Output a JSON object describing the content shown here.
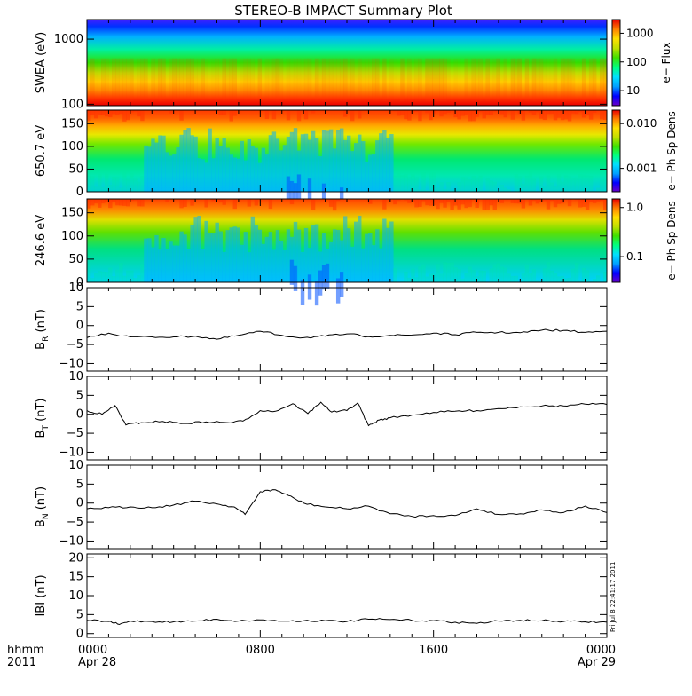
{
  "title": "STEREO-B IMPACT Summary Plot",
  "stamp": "Fri Jul 8 22:41:17 2011",
  "time_axis": {
    "row1_label": "hhmm",
    "row2_label": "2011",
    "ticks": [
      {
        "time": "0000",
        "date": "Apr 28"
      },
      {
        "time": "0800",
        "date": ""
      },
      {
        "time": "1600",
        "date": ""
      },
      {
        "time": "0000",
        "date": "Apr 29"
      }
    ]
  },
  "colors": {
    "spectrogram": [
      "#6a00c8",
      "#0000ff",
      "#00a0ff",
      "#00e0ff",
      "#00ff80",
      "#40e000",
      "#c0e000",
      "#ffe000",
      "#ff8000",
      "#e80000"
    ],
    "line": "#000000"
  },
  "chart_data": [
    {
      "type": "heatmap",
      "ylabel": "SWEA (eV)",
      "yscale": "log",
      "ylim": [
        95,
        2000
      ],
      "yticks": [
        "100",
        "1000"
      ],
      "colorbar_label": "e− Flux",
      "colorbar_scale": "log",
      "colorbar_ticks": [
        "10",
        "100",
        "1000"
      ],
      "colorbar_range": [
        3,
        3000
      ]
    },
    {
      "type": "heatmap",
      "ylabel": "650.7 eV",
      "ylim": [
        0,
        180
      ],
      "yticks": [
        "0",
        "50",
        "100",
        "150"
      ],
      "colorbar_label": "e− Ph Sp Dens",
      "colorbar_scale": "log",
      "colorbar_ticks": [
        "0.001",
        "0.010"
      ],
      "colorbar_range": [
        0.0003,
        0.02
      ]
    },
    {
      "type": "heatmap",
      "ylabel": "246.6 eV",
      "ylim": [
        0,
        180
      ],
      "yticks": [
        "0",
        "50",
        "100",
        "150"
      ],
      "colorbar_label": "e− Ph Sp Dens",
      "colorbar_scale": "log",
      "colorbar_ticks": [
        "0.1",
        "1.0"
      ],
      "colorbar_range": [
        0.03,
        1.5
      ]
    },
    {
      "type": "line",
      "ylabel": "B",
      "ylabel_sub": "R",
      "yunit": " (nT)",
      "ylim": [
        -12,
        10
      ],
      "yticks": [
        "−10",
        "−5",
        "0",
        "5",
        "10"
      ],
      "x": [
        0,
        1,
        2,
        3,
        4,
        5,
        6,
        7,
        8,
        9,
        10,
        11,
        12,
        13,
        14,
        15,
        16,
        17,
        18,
        19,
        20,
        21,
        22,
        23,
        24
      ],
      "y": [
        -3.2,
        -2.0,
        -3.0,
        -3.0,
        -3.0,
        -2.8,
        -3.6,
        -2.6,
        -1.5,
        -2.6,
        -3.2,
        -2.8,
        -2.2,
        -2.9,
        -2.6,
        -2.5,
        -2.0,
        -2.4,
        -1.8,
        -1.8,
        -1.9,
        -1.2,
        -1.3,
        -1.8,
        -1.5
      ]
    },
    {
      "type": "line",
      "ylabel": "B",
      "ylabel_sub": "T",
      "yunit": " (nT)",
      "ylim": [
        -12,
        10
      ],
      "yticks": [
        "−10",
        "−5",
        "0",
        "5",
        "10"
      ],
      "x": [
        0,
        0.7,
        1.3,
        1.8,
        2.5,
        3.5,
        4.5,
        5.5,
        6.5,
        7.2,
        8,
        8.7,
        9.5,
        10.2,
        10.8,
        11.3,
        12,
        12.5,
        13,
        13.5,
        14,
        15,
        16,
        17,
        18,
        19,
        20,
        21,
        22,
        23,
        24
      ],
      "y": [
        1.0,
        0.0,
        2.3,
        -2.8,
        -2.2,
        -1.9,
        -2.4,
        -2.0,
        -2.2,
        -1.8,
        1.0,
        0.8,
        2.8,
        0.2,
        3.2,
        0.6,
        1.0,
        3.0,
        -3.0,
        -1.5,
        -0.9,
        -0.2,
        0.5,
        0.8,
        1.0,
        1.5,
        2.0,
        2.2,
        2.2,
        2.7,
        2.6
      ]
    },
    {
      "type": "line",
      "ylabel": "B",
      "ylabel_sub": "N",
      "yunit": " (nT)",
      "ylim": [
        -12,
        10
      ],
      "yticks": [
        "−10",
        "−5",
        "0",
        "5",
        "10"
      ],
      "x": [
        0,
        1,
        2,
        3,
        4,
        5,
        6,
        6.8,
        7.3,
        8,
        8.7,
        9.3,
        10,
        11,
        12,
        13,
        14,
        15,
        16,
        17,
        18,
        19,
        20,
        21,
        22,
        23,
        24
      ],
      "y": [
        -1.5,
        -1.2,
        -1.0,
        -1.2,
        -0.5,
        0.5,
        -0.2,
        -1.0,
        -3.0,
        3.0,
        3.5,
        2.0,
        0.0,
        -1.0,
        -1.5,
        -0.8,
        -2.8,
        -3.5,
        -3.3,
        -3.3,
        -1.5,
        -3.0,
        -2.8,
        -1.8,
        -2.5,
        -0.8,
        -2.5
      ]
    },
    {
      "type": "line",
      "ylabel": "IBI",
      "ylabel_sub": "",
      "yunit": " (nT)",
      "ylim": [
        -1,
        21
      ],
      "yticks": [
        "0",
        "5",
        "10",
        "15",
        "20"
      ],
      "x": [
        0,
        1,
        1.5,
        2,
        3,
        4,
        5,
        6,
        7,
        8,
        9,
        10,
        11,
        12,
        13,
        14,
        15,
        16,
        17,
        18,
        19,
        20,
        21,
        22,
        23,
        24
      ],
      "y": [
        3.5,
        3.2,
        2.4,
        3.3,
        3.2,
        3.1,
        3.3,
        3.8,
        3.3,
        3.6,
        3.3,
        3.4,
        3.4,
        3.2,
        3.8,
        3.7,
        3.5,
        3.4,
        3.0,
        2.7,
        3.3,
        3.5,
        3.4,
        3.2,
        3.1,
        3.0
      ]
    }
  ]
}
